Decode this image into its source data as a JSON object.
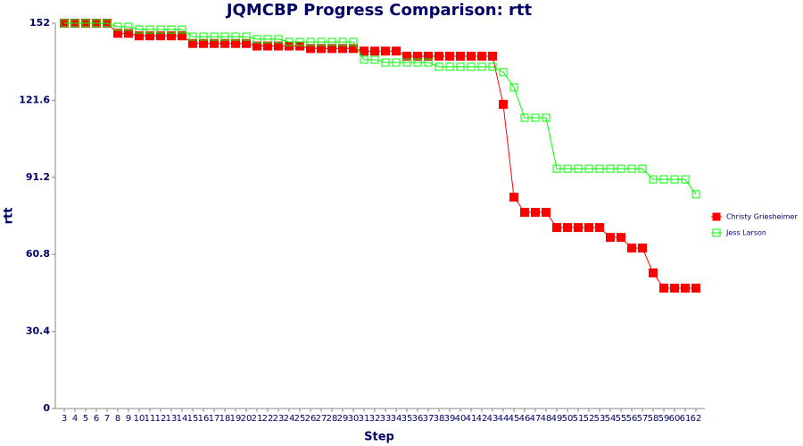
{
  "chart_data": {
    "type": "line",
    "title": "JQMCBP Progress Comparison: rtt",
    "x_label": "Step",
    "y_label": "rtt",
    "categories": [
      "3",
      "4",
      "5",
      "6",
      "7",
      "8",
      "9",
      "10",
      "11",
      "12",
      "13",
      "14",
      "15",
      "16",
      "17",
      "18",
      "19",
      "20",
      "21",
      "22",
      "23",
      "24",
      "25",
      "26",
      "27",
      "28",
      "29",
      "30",
      "31",
      "32",
      "33",
      "34",
      "35",
      "36",
      "37",
      "38",
      "39",
      "40",
      "41",
      "42",
      "43",
      "44",
      "45",
      "46",
      "47",
      "48",
      "49",
      "50",
      "51",
      "52",
      "53",
      "54",
      "55",
      "56",
      "57",
      "58",
      "59",
      "60",
      "61",
      "62"
    ],
    "ylim": [
      0,
      152
    ],
    "yticks": [
      0,
      30.4,
      60.8,
      91.2,
      121.6,
      152
    ],
    "legend": "right",
    "series": [
      {
        "name": "Christy Griesheimer",
        "color": "#ff0000",
        "marker": "filled",
        "values": [
          152,
          152,
          152,
          152,
          152,
          148,
          148,
          147,
          147,
          147,
          147,
          147,
          144,
          144,
          144,
          144,
          144,
          144,
          143,
          143,
          143,
          143,
          143,
          142,
          142,
          142,
          142,
          142,
          141,
          141,
          141,
          141,
          139,
          139,
          139,
          139,
          139,
          139,
          139,
          139,
          139,
          120,
          83.4,
          77.4,
          77.4,
          77.4,
          71.4,
          71.4,
          71.4,
          71.4,
          71.4,
          67.5,
          67.5,
          63.3,
          63.3,
          53.5,
          47.5,
          47.5,
          47.5,
          47.5
        ]
      },
      {
        "name": "Jess Larson",
        "color": "#00ff00",
        "marker": "hollow",
        "values": [
          152,
          152,
          152,
          152,
          152,
          150.6,
          150.6,
          149.5,
          149.5,
          149.5,
          149.5,
          149.5,
          146.7,
          146.7,
          146.7,
          146.7,
          146.7,
          146.7,
          145.7,
          145.7,
          145.7,
          144.6,
          144.6,
          144.6,
          144.6,
          144.6,
          144.6,
          144.6,
          137.6,
          137.6,
          136.5,
          136.5,
          136.5,
          136.5,
          136.5,
          134.8,
          134.8,
          134.8,
          134.8,
          134.8,
          134.8,
          132.7,
          126.7,
          114.7,
          114.7,
          114.7,
          94.6,
          94.6,
          94.6,
          94.6,
          94.6,
          94.6,
          94.6,
          94.6,
          94.6,
          90.4,
          90.4,
          90.4,
          90.4,
          84.5
        ]
      }
    ]
  }
}
